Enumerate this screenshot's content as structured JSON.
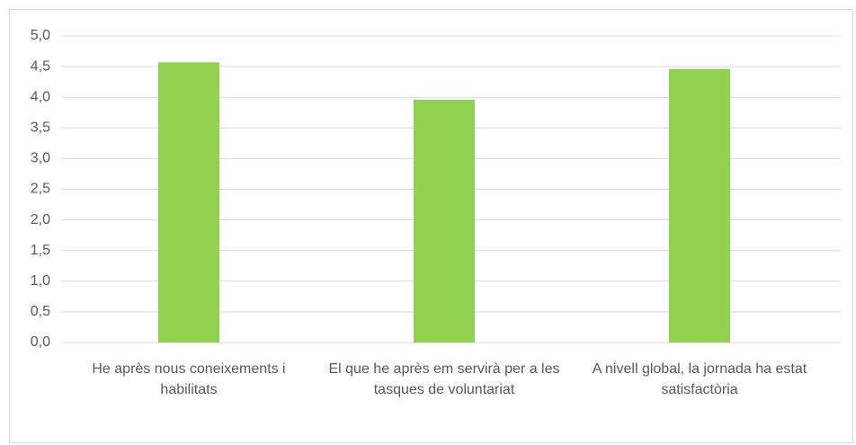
{
  "chart_data": {
    "type": "bar",
    "categories": [
      "He après nous coneixements i habilitats",
      "El que he après em servirà per a les tasques de voluntariat",
      "A nivell global, la jornada ha estat satisfactòria"
    ],
    "values": [
      4.57,
      3.96,
      4.46
    ],
    "color": "#92d050",
    "ylim": [
      0,
      5
    ],
    "yticks": [
      {
        "value": 0,
        "label": "0,0"
      },
      {
        "value": 0.5,
        "label": "0,5"
      },
      {
        "value": 1,
        "label": "1,0"
      },
      {
        "value": 1.5,
        "label": "1,5"
      },
      {
        "value": 2,
        "label": "2,0"
      },
      {
        "value": 2.5,
        "label": "2,5"
      },
      {
        "value": 3,
        "label": "3,0"
      },
      {
        "value": 3.5,
        "label": "3,5"
      },
      {
        "value": 4,
        "label": "4,0"
      },
      {
        "value": 4.5,
        "label": "4,5"
      },
      {
        "value": 5,
        "label": "5,0"
      }
    ],
    "grid": true
  }
}
